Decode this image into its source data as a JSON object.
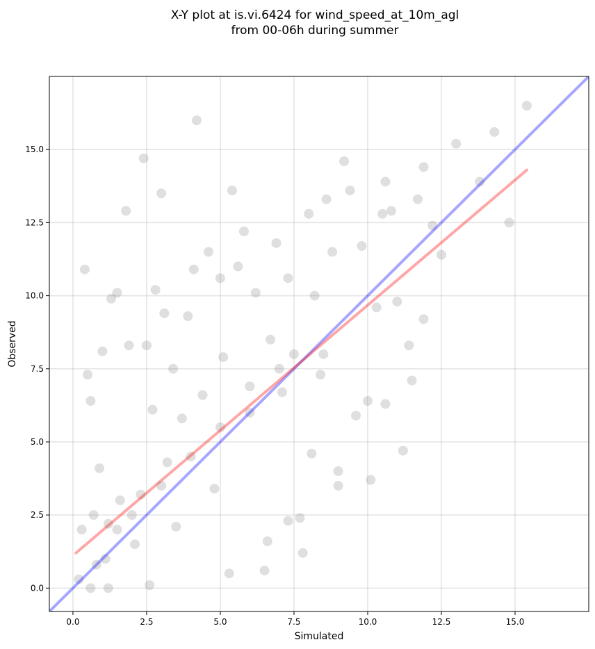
{
  "chart_data": {
    "type": "scatter",
    "title_lines": [
      "X-Y plot at is.vi.6424 for wind_speed_at_10m_agl",
      "from 00-06h during summer"
    ],
    "xlabel": "Simulated",
    "ylabel": "Observed",
    "xlim": [
      -0.8,
      17.5
    ],
    "ylim": [
      -0.8,
      17.5
    ],
    "xticks": [
      0.0,
      2.5,
      5.0,
      7.5,
      10.0,
      12.5,
      15.0
    ],
    "xtick_labels": [
      "0.0",
      "2.5",
      "5.0",
      "7.5",
      "10.0",
      "12.5",
      "15.0"
    ],
    "yticks": [
      0.0,
      2.5,
      5.0,
      7.5,
      10.0,
      12.5,
      15.0
    ],
    "ytick_labels": [
      "0.0",
      "2.5",
      "5.0",
      "7.5",
      "10.0",
      "12.5",
      "15.0"
    ],
    "grid": true,
    "point_color": "#808080",
    "points": [
      [
        0.2,
        0.3
      ],
      [
        0.3,
        2.0
      ],
      [
        0.4,
        10.9
      ],
      [
        0.5,
        7.3
      ],
      [
        0.6,
        6.4
      ],
      [
        0.7,
        2.5
      ],
      [
        0.8,
        0.8
      ],
      [
        0.9,
        4.1
      ],
      [
        1.0,
        8.1
      ],
      [
        1.1,
        1.0
      ],
      [
        1.2,
        2.2
      ],
      [
        1.3,
        9.9
      ],
      [
        1.5,
        10.1
      ],
      [
        1.6,
        3.0
      ],
      [
        1.8,
        12.9
      ],
      [
        1.9,
        8.3
      ],
      [
        2.1,
        1.5
      ],
      [
        2.3,
        3.2
      ],
      [
        2.4,
        14.7
      ],
      [
        2.5,
        8.3
      ],
      [
        2.7,
        6.1
      ],
      [
        2.8,
        10.2
      ],
      [
        3.0,
        13.5
      ],
      [
        3.1,
        9.4
      ],
      [
        3.2,
        4.3
      ],
      [
        3.4,
        7.5
      ],
      [
        3.5,
        2.1
      ],
      [
        3.7,
        5.8
      ],
      [
        3.9,
        9.3
      ],
      [
        4.1,
        10.9
      ],
      [
        4.2,
        16.0
      ],
      [
        4.4,
        6.6
      ],
      [
        4.6,
        11.5
      ],
      [
        4.8,
        3.4
      ],
      [
        5.0,
        10.6
      ],
      [
        5.1,
        7.9
      ],
      [
        5.4,
        13.6
      ],
      [
        5.6,
        11.0
      ],
      [
        5.8,
        12.2
      ],
      [
        6.0,
        6.9
      ],
      [
        6.2,
        10.1
      ],
      [
        6.5,
        0.6
      ],
      [
        6.7,
        8.5
      ],
      [
        6.9,
        11.8
      ],
      [
        7.1,
        6.7
      ],
      [
        7.3,
        10.6
      ],
      [
        7.5,
        8.0
      ],
      [
        7.7,
        2.4
      ],
      [
        7.8,
        1.2
      ],
      [
        8.0,
        12.8
      ],
      [
        8.2,
        10.0
      ],
      [
        8.4,
        7.3
      ],
      [
        8.6,
        13.3
      ],
      [
        8.8,
        11.5
      ],
      [
        9.0,
        3.5
      ],
      [
        9.2,
        14.6
      ],
      [
        9.4,
        13.6
      ],
      [
        9.6,
        5.9
      ],
      [
        9.8,
        11.7
      ],
      [
        10.0,
        6.4
      ],
      [
        10.1,
        3.7
      ],
      [
        10.3,
        9.6
      ],
      [
        10.5,
        12.8
      ],
      [
        10.6,
        6.3
      ],
      [
        10.8,
        12.9
      ],
      [
        11.0,
        9.8
      ],
      [
        11.2,
        4.7
      ],
      [
        11.4,
        8.3
      ],
      [
        11.5,
        7.1
      ],
      [
        11.7,
        13.3
      ],
      [
        11.9,
        9.2
      ],
      [
        12.2,
        12.4
      ],
      [
        12.5,
        11.4
      ],
      [
        13.0,
        15.2
      ],
      [
        13.8,
        13.9
      ],
      [
        14.3,
        15.6
      ],
      [
        14.8,
        12.5
      ],
      [
        15.4,
        16.5
      ],
      [
        11.9,
        14.4
      ],
      [
        10.6,
        13.9
      ],
      [
        9.0,
        4.0
      ],
      [
        8.1,
        4.6
      ],
      [
        7.3,
        2.3
      ],
      [
        6.6,
        1.6
      ],
      [
        5.3,
        0.5
      ],
      [
        2.6,
        0.1
      ],
      [
        1.2,
        0.0
      ],
      [
        0.6,
        0.0
      ],
      [
        3.0,
        3.5
      ],
      [
        4.0,
        4.5
      ],
      [
        5.0,
        5.5
      ],
      [
        6.0,
        6.0
      ],
      [
        7.0,
        7.5
      ],
      [
        2.0,
        2.5
      ],
      [
        1.5,
        2.0
      ],
      [
        8.5,
        8.0
      ]
    ],
    "reference_line": {
      "name": "",
      "color": "#0000ff",
      "x": [
        -0.8,
        17.5
      ],
      "y": [
        -0.8,
        17.5
      ]
    },
    "fit_line": {
      "name": "",
      "color": "#ff0000",
      "x": [
        0.1,
        15.4
      ],
      "y": [
        1.2,
        14.3
      ]
    }
  }
}
